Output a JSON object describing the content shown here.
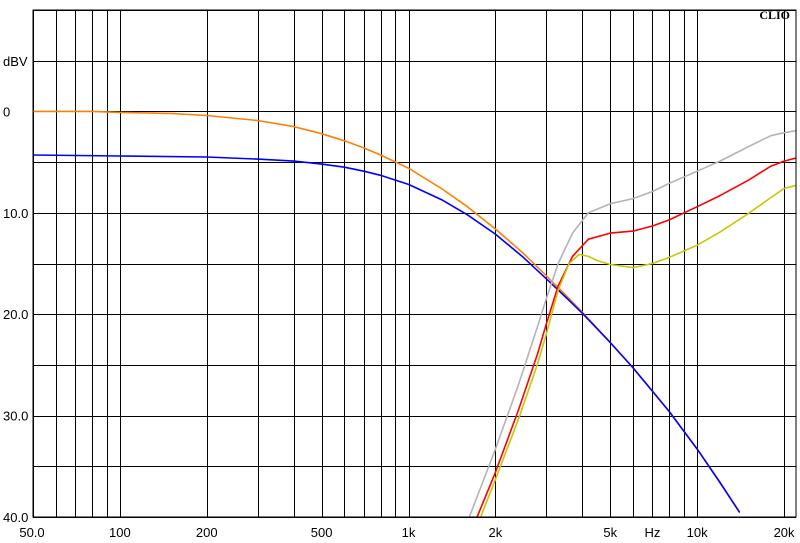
{
  "brand": "CLIO",
  "chart_data": {
    "type": "line",
    "title": "",
    "ylabel": "dBV",
    "xlabel": "Hz",
    "x_scale": "log",
    "xlim": [
      50,
      22000
    ],
    "ylim": [
      -40,
      10
    ],
    "grid": true,
    "x_tick_labels": [
      {
        "value": 50,
        "label": "50.0"
      },
      {
        "value": 100,
        "label": "100"
      },
      {
        "value": 200,
        "label": "200"
      },
      {
        "value": 500,
        "label": "500"
      },
      {
        "value": 1000,
        "label": "1k"
      },
      {
        "value": 2000,
        "label": "2k"
      },
      {
        "value": 5000,
        "label": "5k"
      },
      {
        "value": 7000,
        "label": "Hz"
      },
      {
        "value": 10000,
        "label": "10k"
      },
      {
        "value": 20000,
        "label": "20k"
      }
    ],
    "y_tick_labels": [
      {
        "value": 0,
        "label": "0"
      },
      {
        "value": -10,
        "label": "10.0"
      },
      {
        "value": -20,
        "label": "20.0"
      },
      {
        "value": -30,
        "label": "30.0"
      },
      {
        "value": -40,
        "label": "40.0"
      }
    ],
    "series": [
      {
        "color": "#ff8000",
        "x": [
          50,
          80,
          100,
          150,
          200,
          300,
          400,
          500,
          600,
          700,
          800,
          1000,
          1300,
          1600,
          2000,
          2500,
          3000,
          3500,
          4000,
          5000,
          6000,
          7000,
          8000,
          10000,
          12000,
          14000
        ],
        "y": [
          0,
          0,
          -0.1,
          -0.2,
          -0.4,
          -0.9,
          -1.5,
          -2.2,
          -2.9,
          -3.6,
          -4.3,
          -5.6,
          -7.6,
          -9.4,
          -11.6,
          -14.0,
          -16.2,
          -18.1,
          -19.8,
          -22.8,
          -25.3,
          -27.6,
          -29.6,
          -33.3,
          -36.6,
          -39.5
        ]
      },
      {
        "color": "#0000ff",
        "x": [
          50,
          100,
          200,
          300,
          400,
          500,
          600,
          700,
          800,
          1000,
          1300,
          1600,
          2000,
          2500,
          3000,
          3500,
          4000,
          5000,
          6000,
          7000,
          8000,
          10000,
          12000,
          14000
        ],
        "y": [
          -4.3,
          -4.4,
          -4.5,
          -4.7,
          -4.9,
          -5.2,
          -5.5,
          -5.9,
          -6.3,
          -7.2,
          -8.7,
          -10.2,
          -12.1,
          -14.4,
          -16.5,
          -18.3,
          -19.9,
          -22.8,
          -25.3,
          -27.6,
          -29.6,
          -33.3,
          -36.6,
          -39.5
        ]
      },
      {
        "color": "#ff0000",
        "x": [
          1700,
          2000,
          2400,
          2800,
          3000,
          3300,
          3700,
          4200,
          5000,
          6000,
          7000,
          8000,
          10000,
          12000,
          15000,
          18000,
          20000,
          22000
        ],
        "y": [
          -40.5,
          -35.6,
          -29.5,
          -23.9,
          -21.0,
          -17.2,
          -14.3,
          -12.6,
          -12.0,
          -11.8,
          -11.3,
          -10.7,
          -9.4,
          -8.3,
          -6.8,
          -5.4,
          -4.9,
          -4.6
        ]
      },
      {
        "color": "#b4b4b4",
        "x": [
          1600,
          2000,
          2400,
          2800,
          3000,
          3300,
          3700,
          4200,
          5000,
          6000,
          7000,
          8000,
          10000,
          12000,
          15000,
          18000,
          20000,
          22000
        ],
        "y": [
          -40.5,
          -33.3,
          -27.0,
          -21.2,
          -18.5,
          -15.0,
          -12.0,
          -10.0,
          -9.1,
          -8.6,
          -7.9,
          -7.1,
          -5.9,
          -4.9,
          -3.5,
          -2.4,
          -2.1,
          -1.9
        ]
      },
      {
        "color": "#c8c800",
        "x": [
          1750,
          2000,
          2400,
          2800,
          3000,
          3300,
          3600,
          3900,
          4200,
          4500,
          5000,
          6000,
          7000,
          8000,
          10000,
          12000,
          15000,
          18000,
          20000,
          22000
        ],
        "y": [
          -40.5,
          -36.3,
          -30.4,
          -24.9,
          -22.0,
          -17.6,
          -15.0,
          -14.1,
          -14.3,
          -14.7,
          -15.1,
          -15.4,
          -15.0,
          -14.4,
          -13.2,
          -11.9,
          -10.1,
          -8.5,
          -7.6,
          -7.3
        ]
      }
    ]
  }
}
